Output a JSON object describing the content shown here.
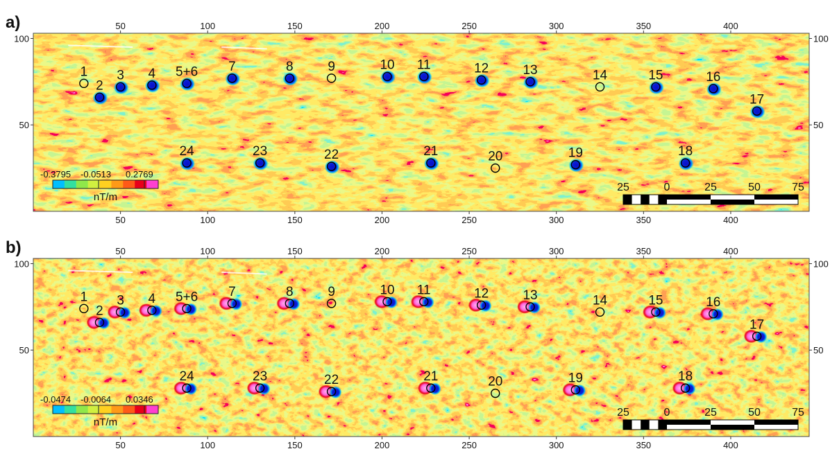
{
  "figure": {
    "x_ticks": [
      "50",
      "100",
      "150",
      "200",
      "250",
      "300",
      "350",
      "400"
    ],
    "y_ticks": [
      "100",
      "50"
    ],
    "colors": {
      "field": [
        "#00bfff",
        "#33e0a0",
        "#8fe84a",
        "#d0f040",
        "#ffd020",
        "#ff9a18",
        "#ff5a18",
        "#e8001a",
        "#ff40d0"
      ],
      "anomaly_dark": "#0a10c8",
      "anomaly_mid": "#00a0ff",
      "anomaly_pink": "#ff66dd",
      "marker": "#000000",
      "scale_black": "#000000",
      "scale_white": "#ffffff"
    },
    "panels": [
      {
        "letter": "a)",
        "colorbar": {
          "ticks": [
            "-0.3795",
            "-0.0513",
            "0.2769"
          ],
          "unit": "nT/m",
          "range": [
            -0.3795,
            0.2769
          ]
        }
      },
      {
        "letter": "b)",
        "colorbar": {
          "ticks": [
            "-0.0474",
            "-0.0064",
            "0.0346"
          ],
          "unit": "nT/m",
          "range": [
            -0.0474,
            0.0346
          ]
        }
      }
    ],
    "points": [
      {
        "label": "1",
        "x": 29,
        "y": 74
      },
      {
        "label": "2",
        "x": 38,
        "y": 66
      },
      {
        "label": "3",
        "x": 50,
        "y": 72
      },
      {
        "label": "4",
        "x": 68,
        "y": 73
      },
      {
        "label": "5+6",
        "x": 88,
        "y": 74
      },
      {
        "label": "7",
        "x": 114,
        "y": 77
      },
      {
        "label": "8",
        "x": 147,
        "y": 77
      },
      {
        "label": "9",
        "x": 171,
        "y": 77
      },
      {
        "label": "10",
        "x": 203,
        "y": 78
      },
      {
        "label": "11",
        "x": 224,
        "y": 78
      },
      {
        "label": "12",
        "x": 257,
        "y": 76
      },
      {
        "label": "13",
        "x": 285,
        "y": 75
      },
      {
        "label": "14",
        "x": 325,
        "y": 72
      },
      {
        "label": "15",
        "x": 357,
        "y": 72
      },
      {
        "label": "16",
        "x": 390,
        "y": 71
      },
      {
        "label": "17",
        "x": 415,
        "y": 58
      },
      {
        "label": "18",
        "x": 374,
        "y": 28
      },
      {
        "label": "19",
        "x": 311,
        "y": 27
      },
      {
        "label": "20",
        "x": 265,
        "y": 25
      },
      {
        "label": "21",
        "x": 228,
        "y": 28
      },
      {
        "label": "22",
        "x": 171,
        "y": 26
      },
      {
        "label": "23",
        "x": 130,
        "y": 28
      },
      {
        "label": "24",
        "x": 88,
        "y": 28
      }
    ],
    "scale_bar": {
      "labels": [
        "25",
        "0",
        "25",
        "50",
        "75"
      ]
    }
  }
}
